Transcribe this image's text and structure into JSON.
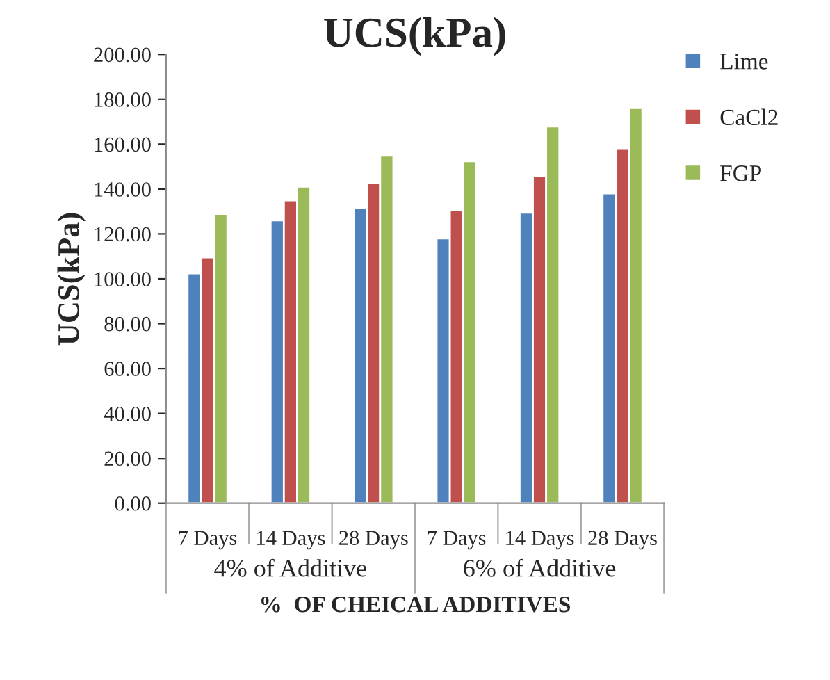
{
  "chart_data": {
    "type": "bar",
    "title": "UCS(kPa)",
    "xlabel": "%  OF CHEICAL ADDITIVES",
    "ylabel": "UCS(kPa)",
    "categories": [
      "7 Days",
      "14 Days",
      "28 Days",
      "7 Days",
      "14 Days",
      "28 Days"
    ],
    "annotations": [
      "4% of Additive",
      "6% of Additive"
    ],
    "series": [
      {
        "name": "Lime",
        "color": "#4f81bd",
        "values": [
          102.4,
          126.1,
          131.4,
          118.0,
          129.5,
          138.1
        ]
      },
      {
        "name": "CaCl2",
        "color": "#c0504d",
        "values": [
          109.6,
          135.0,
          142.9,
          130.8,
          145.7,
          157.9
        ]
      },
      {
        "name": "FGP",
        "color": "#9bbb59",
        "values": [
          128.9,
          141.1,
          154.9,
          152.4,
          167.9,
          176.1
        ]
      }
    ],
    "ylim": [
      0,
      200
    ],
    "yticks": [
      {
        "value": 0,
        "label": "0.00"
      },
      {
        "value": 20,
        "label": "20.00"
      },
      {
        "value": 40,
        "label": "40.00"
      },
      {
        "value": 60,
        "label": "60.00"
      },
      {
        "value": 80,
        "label": "80.00"
      },
      {
        "value": 100,
        "label": "100.00"
      },
      {
        "value": 120,
        "label": "120.00"
      },
      {
        "value": 140,
        "label": "140.00"
      },
      {
        "value": 160,
        "label": "160.00"
      },
      {
        "value": 180,
        "label": "180.00"
      },
      {
        "value": 200,
        "label": "200.00"
      }
    ],
    "grid": false,
    "legend": "top right"
  }
}
